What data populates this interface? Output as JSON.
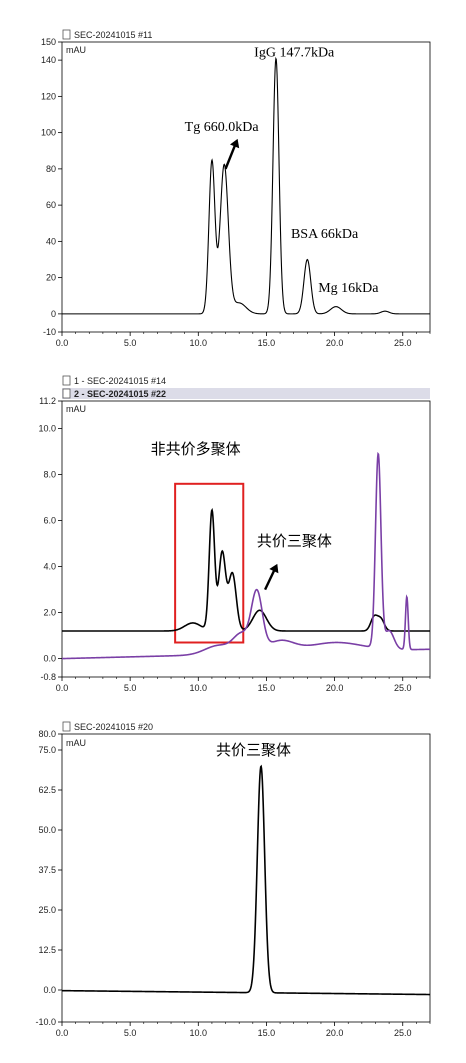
{
  "colors": {
    "trace_black": "#000000",
    "trace_purple": "#7a3fa6",
    "ytick_purple": "#7a3fa6",
    "box_red": "#e02020",
    "legend_bg": "#dcdce8"
  },
  "chart_data": [
    {
      "type": "line",
      "header": "SEC-20241015 #11",
      "unit": "mAU",
      "xlim": [
        0,
        27
      ],
      "ylim": [
        -10,
        150
      ],
      "xticks": [
        0.0,
        5.0,
        10.0,
        15.0,
        20.0,
        25.0
      ],
      "xtick_labels": [
        "0.0",
        "5.0",
        "10.0",
        "15.0",
        "20.0",
        "25.0"
      ],
      "yticks": [
        -10,
        0,
        20,
        40,
        60,
        80,
        100,
        120,
        140,
        150
      ],
      "ytick_labels": [
        "-10",
        "0",
        "20",
        "40",
        "60",
        "80",
        "100",
        "120",
        "140",
        "150"
      ],
      "series": [
        {
          "color": "#000000",
          "baseline": 0,
          "peaks": [
            {
              "x": 11.0,
              "h": 84,
              "w": 0.22
            },
            {
              "x": 11.9,
              "h": 82,
              "w": 0.3
            },
            {
              "x": 13.0,
              "h": 6,
              "w": 0.5
            },
            {
              "x": 15.7,
              "h": 141,
              "w": 0.22
            },
            {
              "x": 18.0,
              "h": 30,
              "w": 0.25
            },
            {
              "x": 20.1,
              "h": 4,
              "w": 0.4
            },
            {
              "x": 23.7,
              "h": 1.5,
              "w": 0.3
            }
          ]
        }
      ],
      "annotations": [
        {
          "text": "IgG 147.7kDa",
          "x": 14.1,
          "y": 142
        },
        {
          "text": "Tg 660.0kDa",
          "x": 9.0,
          "y": 101
        },
        {
          "text": "BSA 66kDa",
          "x": 16.8,
          "y": 42
        },
        {
          "text": "Mg 16kDa",
          "x": 18.8,
          "y": 12
        }
      ],
      "arrows": [
        {
          "from": [
            12.0,
            80
          ],
          "to": [
            12.8,
            95
          ]
        }
      ]
    },
    {
      "type": "line",
      "legend": [
        "1 - SEC-20241015 #14",
        "2 - SEC-20241015 #22"
      ],
      "unit": "mAU",
      "xlim": [
        0,
        27
      ],
      "ylim": [
        -0.8,
        11.2
      ],
      "xticks": [
        0.0,
        5.0,
        10.0,
        15.0,
        20.0,
        25.0
      ],
      "xtick_labels": [
        "0.0",
        "5.0",
        "10.0",
        "15.0",
        "20.0",
        "25.0"
      ],
      "yticks": [
        -0.8,
        0.0,
        2.0,
        4.0,
        6.0,
        8.0,
        10.0,
        11.2
      ],
      "ytick_labels": [
        "-0.8",
        "0.0",
        "2.0",
        "4.0",
        "6.0",
        "8.0",
        "10.0",
        "11.2"
      ],
      "series": [
        {
          "color": "#000000",
          "baseline": 1.2,
          "slope": 0.0,
          "peaks": [
            {
              "x": 9.6,
              "h": 0.35,
              "w": 0.6
            },
            {
              "x": 11.0,
              "h": 5.2,
              "w": 0.2
            },
            {
              "x": 11.75,
              "h": 3.4,
              "w": 0.25
            },
            {
              "x": 12.5,
              "h": 2.5,
              "w": 0.28
            },
            {
              "x": 14.5,
              "h": 0.9,
              "w": 0.5
            },
            {
              "x": 22.9,
              "h": 0.6,
              "w": 0.25
            },
            {
              "x": 23.4,
              "h": 0.5,
              "w": 0.25
            }
          ]
        },
        {
          "color": "#7a3fa6",
          "baseline": 0.0,
          "slope": 0.015,
          "peaks": [
            {
              "x": 11.5,
              "h": 0.4,
              "w": 1.0
            },
            {
              "x": 13.2,
              "h": 0.8,
              "w": 0.6
            },
            {
              "x": 14.3,
              "h": 2.5,
              "w": 0.4
            },
            {
              "x": 16.0,
              "h": 0.5,
              "w": 1.0
            },
            {
              "x": 20.0,
              "h": 0.4,
              "w": 2.0
            },
            {
              "x": 23.2,
              "h": 8.4,
              "w": 0.2
            },
            {
              "x": 24.0,
              "h": 0.8,
              "w": 0.35
            },
            {
              "x": 25.3,
              "h": 2.3,
              "w": 0.1
            }
          ]
        }
      ],
      "annotations": [
        {
          "text": "非共价多聚体",
          "x": 6.5,
          "y": 8.9
        },
        {
          "text": "共价三聚体",
          "x": 14.3,
          "y": 4.9
        }
      ],
      "box": {
        "x0": 8.3,
        "x1": 13.3,
        "y0": 0.7,
        "y1": 7.6
      },
      "arrows": [
        {
          "from": [
            14.9,
            3.0
          ],
          "to": [
            15.7,
            4.0
          ]
        }
      ]
    },
    {
      "type": "line",
      "header": "SEC-20241015 #20",
      "unit": "mAU",
      "xlim": [
        0,
        27
      ],
      "ylim": [
        -10,
        80
      ],
      "xticks": [
        0.0,
        5.0,
        10.0,
        15.0,
        20.0,
        25.0
      ],
      "xtick_labels": [
        "0.0",
        "5.0",
        "10.0",
        "15.0",
        "20.0",
        "25.0"
      ],
      "yticks": [
        -10.0,
        0.0,
        12.5,
        25.0,
        37.5,
        50.0,
        62.5,
        75.0,
        80.0
      ],
      "ytick_labels": [
        "-10.0",
        "0.0",
        "12.5",
        "25.0",
        "37.5",
        "50.0",
        "62.5",
        "75.0",
        "80.0"
      ],
      "series": [
        {
          "color": "#000000",
          "baseline": -0.2,
          "slope": -0.045,
          "peaks": [
            {
              "x": 14.6,
              "h": 70.8,
              "w": 0.27
            }
          ]
        }
      ],
      "annotations": [
        {
          "text": "共价三聚体",
          "x": 11.3,
          "y": 73.5
        }
      ]
    }
  ]
}
